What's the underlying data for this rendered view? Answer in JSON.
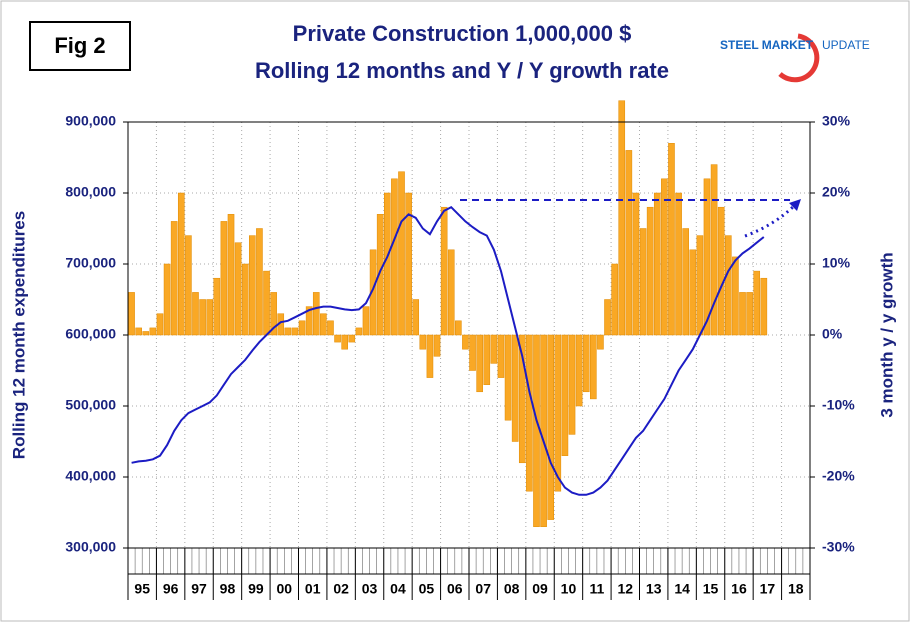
{
  "figure_label": "Fig 2",
  "logo": [
    "STEEL MARKET",
    "UPDATE"
  ],
  "chart_data": {
    "type": "combo",
    "title": "Private Construction 1,000,000 $",
    "subtitle": "Rolling 12 months and Y / Y growth rate",
    "y_label": "Rolling 12 month expenditures",
    "y2_label": "3 month y / y growth",
    "grid": true,
    "categories": [
      "95",
      null,
      null,
      null,
      "96",
      null,
      null,
      null,
      "97",
      null,
      null,
      null,
      "98",
      null,
      null,
      null,
      "99",
      null,
      null,
      null,
      "00",
      null,
      null,
      null,
      "01",
      null,
      null,
      null,
      "02",
      null,
      null,
      null,
      "03",
      null,
      null,
      null,
      "04",
      null,
      null,
      null,
      "05",
      null,
      null,
      null,
      "06",
      null,
      null,
      null,
      "07",
      null,
      null,
      null,
      "08",
      null,
      null,
      null,
      "09",
      null,
      null,
      null,
      "10",
      null,
      null,
      null,
      "11",
      null,
      null,
      null,
      "12",
      null,
      null,
      null,
      "13",
      null,
      null,
      null,
      "14",
      null,
      null,
      null,
      "15",
      null,
      null,
      null,
      "16",
      null,
      null,
      null,
      "17",
      null,
      null,
      null,
      "18",
      null,
      null,
      null
    ],
    "ylim": [
      300000,
      900000
    ],
    "yticks": [
      {
        "value": 300000,
        "label": "300,000"
      },
      {
        "value": 400000,
        "label": "400,000"
      },
      {
        "value": 500000,
        "label": "500,000"
      },
      {
        "value": 600000,
        "label": "600,000"
      },
      {
        "value": 700000,
        "label": "700,000"
      },
      {
        "value": 800000,
        "label": "800,000"
      },
      {
        "value": 900000,
        "label": "900,000"
      }
    ],
    "y2lim": [
      -30,
      30
    ],
    "y2ticks": [
      {
        "value": -30,
        "label": "-30%"
      },
      {
        "value": -20,
        "label": "-20%"
      },
      {
        "value": -10,
        "label": "-10%"
      },
      {
        "value": 0,
        "label": "0%"
      },
      {
        "value": 10,
        "label": "10%"
      },
      {
        "value": 20,
        "label": "20%"
      },
      {
        "value": 30,
        "label": "30%"
      }
    ],
    "series": [
      {
        "type": "bar",
        "axis": "y2",
        "color": "#f9a825",
        "values": [
          6,
          1,
          0.5,
          1,
          3,
          10,
          16,
          20,
          14,
          6,
          5,
          5,
          8,
          16,
          17,
          13,
          10,
          14,
          15,
          9,
          6,
          3,
          1,
          1,
          2,
          4,
          6,
          3,
          2,
          -1,
          -2,
          -1,
          1,
          4,
          12,
          17,
          20,
          22,
          23,
          20,
          5,
          -2,
          -6,
          -3,
          18,
          12,
          2,
          -2,
          -5,
          -8,
          -7,
          -4,
          -6,
          -12,
          -15,
          -18,
          -22,
          -27,
          -27,
          -26,
          -22,
          -17,
          -14,
          -10,
          -8,
          -9,
          -2,
          5,
          10,
          33,
          26,
          20,
          15,
          18,
          20,
          22,
          27,
          20,
          15,
          12,
          14,
          22,
          24,
          18,
          14,
          11,
          6,
          6,
          9,
          8,
          null,
          null,
          null,
          null,
          null,
          null
        ]
      },
      {
        "type": "line",
        "color": "#1c1cc4",
        "values": [
          420000,
          422000,
          423000,
          425000,
          430000,
          445000,
          465000,
          480000,
          490000,
          495000,
          500000,
          505000,
          515000,
          530000,
          545000,
          555000,
          565000,
          578000,
          590000,
          600000,
          610000,
          618000,
          620000,
          625000,
          630000,
          635000,
          638000,
          640000,
          640000,
          638000,
          636000,
          635000,
          636000,
          645000,
          665000,
          690000,
          710000,
          735000,
          760000,
          770000,
          765000,
          750000,
          742000,
          760000,
          775000,
          780000,
          770000,
          760000,
          752000,
          745000,
          740000,
          720000,
          690000,
          650000,
          610000,
          570000,
          520000,
          480000,
          450000,
          420000,
          400000,
          385000,
          378000,
          375000,
          375000,
          378000,
          385000,
          395000,
          410000,
          425000,
          440000,
          455000,
          465000,
          480000,
          495000,
          510000,
          530000,
          550000,
          565000,
          580000,
          600000,
          620000,
          645000,
          668000,
          690000,
          705000,
          715000,
          722000,
          730000,
          738000,
          null,
          null,
          null,
          null,
          null,
          null
        ]
      }
    ]
  }
}
